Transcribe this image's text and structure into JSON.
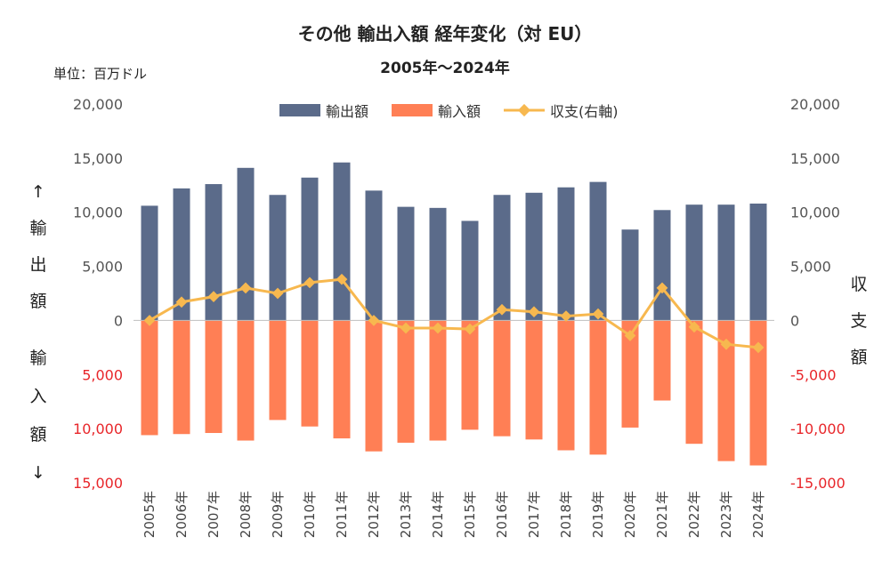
{
  "chart_data": {
    "type": "bar",
    "title": "その他 輸出入額 経年変化（対 EU）",
    "subtitle": "2005年～2024年",
    "unit_label": "単位：百万ドル",
    "left_label_top": "↑ 輸 出 額",
    "left_label_bottom": "輸 入 額 ↓",
    "right_label": "収 支 額",
    "categories": [
      "2005年",
      "2006年",
      "2007年",
      "2008年",
      "2009年",
      "2010年",
      "2011年",
      "2012年",
      "2013年",
      "2014年",
      "2015年",
      "2016年",
      "2017年",
      "2018年",
      "2019年",
      "2020年",
      "2021年",
      "2022年",
      "2023年",
      "2024年"
    ],
    "series": [
      {
        "name": "輸出額",
        "type": "bar",
        "color": "#5b6b8a",
        "values": [
          10600,
          12200,
          12600,
          14100,
          11600,
          13200,
          14600,
          12000,
          10500,
          10400,
          9200,
          11600,
          11800,
          12300,
          12800,
          8400,
          10200,
          10700,
          10700,
          10800
        ]
      },
      {
        "name": "輸入額",
        "type": "bar",
        "color": "#ff7f55",
        "values": [
          10600,
          10500,
          10400,
          11100,
          9200,
          9800,
          10900,
          12100,
          11300,
          11100,
          10100,
          10700,
          11000,
          12000,
          12400,
          9900,
          7400,
          11400,
          13000,
          13400
        ]
      },
      {
        "name": "収支(右軸)",
        "type": "line",
        "color": "#f7b84f",
        "values": [
          0,
          1700,
          2200,
          3000,
          2500,
          3500,
          3800,
          0,
          -700,
          -700,
          -800,
          1000,
          800,
          400,
          600,
          -1400,
          3000,
          -600,
          -2200,
          -2500
        ]
      }
    ],
    "left_axis": {
      "min": -15000,
      "max": 20000,
      "ticks": [
        20000,
        15000,
        10000,
        5000,
        0,
        -5000,
        -10000,
        -15000
      ],
      "tick_labels": [
        "20,000",
        "15,000",
        "10,000",
        "5,000",
        "0",
        "5,000",
        "10,000",
        "15,000"
      ]
    },
    "right_axis": {
      "min": -15000,
      "max": 20000,
      "ticks": [
        20000,
        15000,
        10000,
        5000,
        0,
        -5000,
        -10000,
        -15000
      ],
      "tick_labels": [
        "20,000",
        "15,000",
        "10,000",
        "5,000",
        "0",
        "-5,000",
        "-10,000",
        "-15,000"
      ]
    },
    "negative_tick_color": "#e8262a",
    "legend_position": "top-center",
    "grid": false
  }
}
